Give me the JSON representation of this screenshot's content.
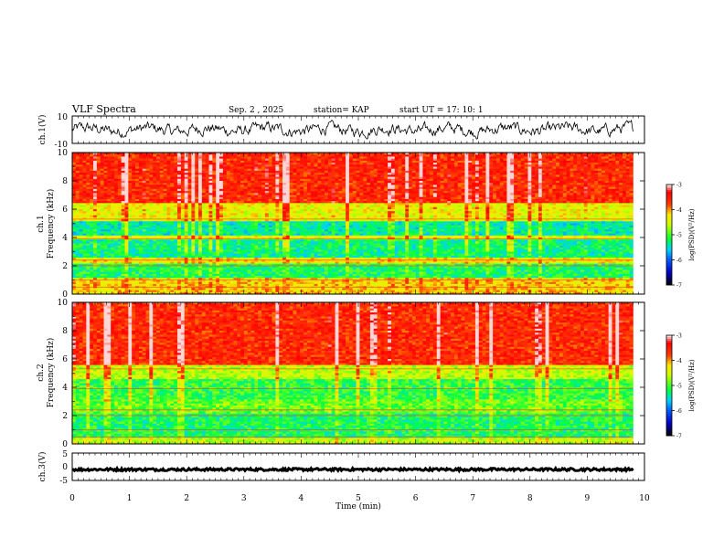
{
  "header": {
    "title": "VLF Spectra",
    "date": "Sep. 2 , 2025",
    "station": "station= KAP",
    "start_time": "start UT = 17: 10: 1"
  },
  "colors": {
    "waveform": "#000000",
    "colormap": [
      "#000000",
      "#0000ff",
      "#00c8ff",
      "#00ff40",
      "#ffff00",
      "#ff0000",
      "#ffffff"
    ]
  },
  "chart_data": [
    {
      "name": "ch1-waveform",
      "type": "line",
      "ylabel": "ch.1(V)",
      "ylim": [
        -10,
        10
      ],
      "yticks": [
        "10",
        "-10"
      ],
      "xlim": [
        0,
        10
      ],
      "note": "noisy broadband waveform centered near 0 V, amplitude roughly -6 to +6 V, ending at ~9.8 min"
    },
    {
      "name": "ch1-spectrogram",
      "type": "heatmap",
      "ylabel": "ch.1 Frequency (kHz)",
      "ylabel_line1": "ch.1",
      "ylabel_line2": "Frequency (kHz)",
      "ylim": [
        0,
        10
      ],
      "yticks": [
        "0",
        "2",
        "4",
        "6",
        "8",
        "10"
      ],
      "xlim": [
        0,
        10
      ],
      "data_end_min": 9.8,
      "colorbar": {
        "label": "log(PSD)(V²/Hz)",
        "range": [
          -7,
          -3
        ],
        "ticks": [
          "-3",
          "-4",
          "-5",
          "-6",
          "-7"
        ]
      },
      "bands_khz": [
        {
          "from": 0,
          "to": 1.2,
          "level": -4.2
        },
        {
          "from": 1.2,
          "to": 2.2,
          "level": -5.2
        },
        {
          "from": 2.2,
          "to": 2.6,
          "level": -4.3
        },
        {
          "from": 2.6,
          "to": 3.8,
          "level": -5.3
        },
        {
          "from": 3.8,
          "to": 4.2,
          "level": -4.5
        },
        {
          "from": 4.2,
          "to": 5.2,
          "level": -5.4
        },
        {
          "from": 5.2,
          "to": 6.5,
          "level": -4.4
        },
        {
          "from": 6.5,
          "to": 10,
          "level": -3.6
        }
      ]
    },
    {
      "name": "ch2-spectrogram",
      "type": "heatmap",
      "ylabel": "ch.2 Frequency (kHz)",
      "ylabel_line1": "ch.2",
      "ylabel_line2": "Frequency (kHz)",
      "ylim": [
        0,
        10
      ],
      "yticks": [
        "0",
        "2",
        "4",
        "6",
        "8",
        "10"
      ],
      "xlim": [
        0,
        10
      ],
      "data_end_min": 9.8,
      "colorbar": {
        "label": "log(PSD)(V²/Hz)",
        "range": [
          -7,
          -3
        ],
        "ticks": [
          "-3",
          "-4",
          "-5",
          "-6",
          "-7"
        ]
      },
      "bands_khz": [
        {
          "from": 0,
          "to": 0.4,
          "level": -4.6
        },
        {
          "from": 0.4,
          "to": 2.2,
          "level": -5.2
        },
        {
          "from": 2.2,
          "to": 3.2,
          "level": -4.9
        },
        {
          "from": 3.2,
          "to": 4.6,
          "level": -5.1
        },
        {
          "from": 4.6,
          "to": 5.6,
          "level": -4.6
        },
        {
          "from": 5.6,
          "to": 10,
          "level": -3.6
        }
      ]
    },
    {
      "name": "ch3-waveform",
      "type": "line",
      "ylabel": "ch.3(V)",
      "ylim": [
        -5,
        5
      ],
      "yticks": [
        "5",
        "0",
        "-5"
      ],
      "xlim": [
        0,
        10
      ],
      "xticks": [
        "0",
        "1",
        "2",
        "3",
        "4",
        "5",
        "6",
        "7",
        "8",
        "9",
        "10"
      ],
      "xlabel": "Time (min)",
      "note": "near-constant signal at about -1 V with small jitter, ending at ~9.8 min"
    }
  ]
}
